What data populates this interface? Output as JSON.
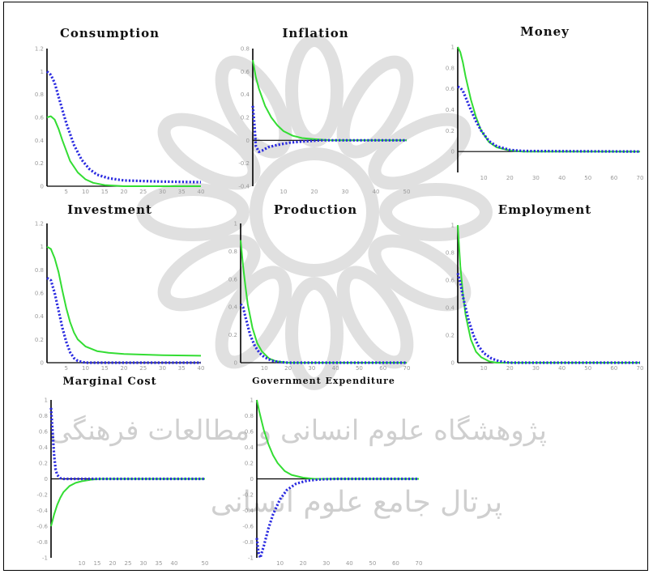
{
  "colors": {
    "green": "#33dd33",
    "blue": "#2a2ae0",
    "axis": "#000000",
    "watermark": "#d6d6d6"
  },
  "watermark": {
    "line1": "پژوهشگاه علوم انسانی و مطالعات فرهنگی",
    "line2": "پرتال جامع علوم انسانی"
  },
  "chart_data": [
    {
      "type": "line",
      "title": "Consumption",
      "xlim": [
        0,
        40
      ],
      "xticks": [
        5,
        10,
        15,
        20,
        25,
        30,
        35,
        40
      ],
      "ylim": [
        0,
        1.2
      ],
      "yticks": [
        0,
        0.2,
        0.4,
        0.6,
        0.8,
        1.0,
        1.2
      ],
      "series": [
        {
          "style": "solid",
          "color": "green",
          "x": [
            0,
            1,
            2,
            3,
            4,
            6,
            8,
            10,
            12,
            15,
            20,
            40
          ],
          "y": [
            0.6,
            0.61,
            0.58,
            0.5,
            0.4,
            0.22,
            0.12,
            0.06,
            0.03,
            0.01,
            0,
            0
          ]
        },
        {
          "style": "dotted",
          "color": "blue",
          "x": [
            0,
            1,
            2,
            3,
            5,
            7,
            9,
            11,
            13,
            16,
            20,
            25,
            30,
            40
          ],
          "y": [
            1.0,
            0.97,
            0.9,
            0.78,
            0.55,
            0.36,
            0.23,
            0.15,
            0.1,
            0.07,
            0.05,
            0.045,
            0.04,
            0.035
          ]
        }
      ]
    },
    {
      "type": "line",
      "title": "Inflation",
      "xlim": [
        0,
        50
      ],
      "xticks": [
        10,
        20,
        30,
        40,
        50
      ],
      "ylim": [
        -0.4,
        0.8
      ],
      "yticks": [
        -0.4,
        -0.2,
        0,
        0.2,
        0.4,
        0.6,
        0.8
      ],
      "series": [
        {
          "style": "solid",
          "color": "green",
          "x": [
            0,
            1,
            2,
            4,
            6,
            8,
            10,
            13,
            16,
            20,
            25,
            50
          ],
          "y": [
            0.7,
            0.55,
            0.45,
            0.3,
            0.2,
            0.13,
            0.08,
            0.04,
            0.02,
            0.01,
            0,
            0
          ]
        },
        {
          "style": "dotted",
          "color": "blue",
          "x": [
            0,
            0.5,
            1,
            2,
            3,
            5,
            8,
            12,
            16,
            22,
            30,
            50
          ],
          "y": [
            0.3,
            0.15,
            -0.05,
            -0.1,
            -0.09,
            -0.06,
            -0.04,
            -0.02,
            -0.01,
            0,
            0,
            0
          ]
        }
      ]
    },
    {
      "type": "line",
      "title": "Money",
      "xlim": [
        0,
        70
      ],
      "xticks": [
        10,
        20,
        30,
        40,
        50,
        60,
        70
      ],
      "ylim": [
        -0.2,
        1.0
      ],
      "yticks": [
        0,
        0.2,
        0.4,
        0.6,
        0.8,
        1.0
      ],
      "series": [
        {
          "style": "solid",
          "color": "green",
          "x": [
            0,
            1,
            2,
            3,
            5,
            7,
            9,
            12,
            15,
            20,
            25,
            70
          ],
          "y": [
            1.0,
            0.95,
            0.85,
            0.72,
            0.5,
            0.33,
            0.2,
            0.09,
            0.04,
            0.01,
            0,
            0
          ]
        },
        {
          "style": "dotted",
          "color": "blue",
          "x": [
            0,
            1,
            2,
            3,
            5,
            7,
            9,
            12,
            15,
            20,
            25,
            70
          ],
          "y": [
            0.62,
            0.61,
            0.58,
            0.52,
            0.4,
            0.29,
            0.2,
            0.1,
            0.05,
            0.015,
            0.005,
            0
          ]
        }
      ]
    },
    {
      "type": "line",
      "title": "Investment",
      "xlim": [
        0,
        40
      ],
      "xticks": [
        5,
        10,
        15,
        20,
        25,
        30,
        35,
        40
      ],
      "ylim": [
        0,
        1.2
      ],
      "yticks": [
        0,
        0.2,
        0.4,
        0.6,
        0.8,
        1.0,
        1.2
      ],
      "series": [
        {
          "style": "solid",
          "color": "green",
          "x": [
            0,
            1,
            2,
            3,
            4,
            5,
            6,
            7,
            8,
            10,
            13,
            16,
            20,
            25,
            30,
            40
          ],
          "y": [
            1.0,
            0.98,
            0.9,
            0.78,
            0.62,
            0.47,
            0.35,
            0.26,
            0.2,
            0.14,
            0.1,
            0.085,
            0.075,
            0.07,
            0.065,
            0.06
          ]
        },
        {
          "style": "dotted",
          "color": "blue",
          "x": [
            0,
            1,
            2,
            3,
            4,
            5,
            6,
            7,
            8,
            10,
            40
          ],
          "y": [
            0.73,
            0.71,
            0.6,
            0.45,
            0.3,
            0.18,
            0.09,
            0.04,
            0.015,
            0,
            0
          ]
        }
      ]
    },
    {
      "type": "line",
      "title": "Production",
      "xlim": [
        0,
        70
      ],
      "xticks": [
        10,
        20,
        30,
        40,
        50,
        60,
        70
      ],
      "ylim": [
        0,
        1.0
      ],
      "yticks": [
        0,
        0.2,
        0.4,
        0.6,
        0.8,
        1.0
      ],
      "series": [
        {
          "style": "solid",
          "color": "green",
          "x": [
            0,
            1,
            2,
            3,
            5,
            7,
            9,
            12,
            15,
            20,
            70
          ],
          "y": [
            0.88,
            0.7,
            0.55,
            0.42,
            0.25,
            0.14,
            0.08,
            0.03,
            0.01,
            0,
            0
          ]
        },
        {
          "style": "dotted",
          "color": "blue",
          "x": [
            0,
            1,
            2,
            4,
            6,
            8,
            10,
            13,
            16,
            20,
            70
          ],
          "y": [
            0.42,
            0.4,
            0.33,
            0.2,
            0.12,
            0.07,
            0.04,
            0.015,
            0.005,
            0,
            0
          ]
        }
      ]
    },
    {
      "type": "line",
      "title": "Employment",
      "xlim": [
        0,
        70
      ],
      "xticks": [
        10,
        20,
        30,
        40,
        50,
        60,
        70
      ],
      "ylim": [
        0,
        1.0
      ],
      "yticks": [
        0,
        0.2,
        0.4,
        0.6,
        0.8,
        1.0
      ],
      "series": [
        {
          "style": "solid",
          "color": "green",
          "x": [
            0,
            1,
            2,
            3,
            5,
            7,
            9,
            12,
            15,
            70
          ],
          "y": [
            1.0,
            0.7,
            0.5,
            0.35,
            0.17,
            0.08,
            0.04,
            0.01,
            0,
            0
          ]
        },
        {
          "style": "dotted",
          "color": "blue",
          "x": [
            0,
            1,
            2,
            4,
            6,
            8,
            10,
            13,
            16,
            20,
            70
          ],
          "y": [
            0.65,
            0.58,
            0.48,
            0.32,
            0.2,
            0.12,
            0.07,
            0.03,
            0.01,
            0,
            0
          ]
        }
      ]
    },
    {
      "type": "line",
      "title": "Marginal Cost",
      "xlim": [
        0,
        50
      ],
      "xticks": [
        10,
        15,
        20,
        25,
        30,
        35,
        40,
        50
      ],
      "ylim": [
        -1.0,
        1.0
      ],
      "yticks": [
        -1.0,
        -0.8,
        -0.6,
        -0.4,
        -0.2,
        0,
        0.2,
        0.4,
        0.6,
        0.8,
        1.0
      ],
      "series": [
        {
          "style": "solid",
          "color": "green",
          "x": [
            0,
            1,
            2,
            3,
            4,
            6,
            8,
            10,
            13,
            16,
            20,
            50
          ],
          "y": [
            -0.6,
            -0.45,
            -0.33,
            -0.24,
            -0.17,
            -0.09,
            -0.05,
            -0.03,
            -0.01,
            0,
            0,
            0
          ]
        },
        {
          "style": "dotted",
          "color": "blue",
          "x": [
            0,
            0.5,
            1,
            1.5,
            2,
            3,
            4,
            6,
            10,
            50
          ],
          "y": [
            0.9,
            0.6,
            0.3,
            0.12,
            0.05,
            0.01,
            0,
            0,
            0,
            0
          ]
        }
      ]
    },
    {
      "type": "line",
      "title": "Government Expenditure",
      "xlim": [
        0,
        70
      ],
      "xticks": [
        10,
        20,
        30,
        40,
        50,
        60,
        70
      ],
      "ylim": [
        -1.0,
        1.0
      ],
      "yticks": [
        -1.0,
        -0.8,
        -0.6,
        -0.4,
        -0.2,
        0,
        0.2,
        0.4,
        0.6,
        0.8,
        1.0
      ],
      "series": [
        {
          "style": "solid",
          "color": "green",
          "x": [
            0,
            1,
            2,
            3,
            5,
            7,
            9,
            12,
            15,
            20,
            25,
            70
          ],
          "y": [
            1.0,
            0.86,
            0.74,
            0.62,
            0.44,
            0.3,
            0.2,
            0.1,
            0.05,
            0.015,
            0,
            0
          ]
        },
        {
          "style": "dotted",
          "color": "blue",
          "x": [
            0,
            0.7,
            1.5,
            2,
            3,
            5,
            7,
            10,
            13,
            17,
            22,
            28,
            35,
            70
          ],
          "y": [
            -0.75,
            -0.93,
            -1.0,
            -0.95,
            -0.85,
            -0.63,
            -0.45,
            -0.26,
            -0.14,
            -0.06,
            -0.02,
            -0.005,
            0,
            0
          ]
        }
      ]
    }
  ]
}
